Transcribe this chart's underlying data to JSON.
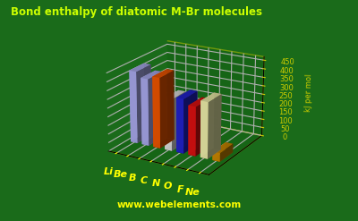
{
  "title": "Bond enthalpy of diatomic M-Br molecules",
  "ylabel": "kJ per mol",
  "elements": [
    "Li",
    "Be",
    "B",
    "C",
    "N",
    "O",
    "F",
    "Ne"
  ],
  "values": [
    420,
    390,
    410,
    300,
    315,
    285,
    325,
    50
  ],
  "bar_colors": [
    "#aaaaee",
    "#aaaaee",
    "#ee5500",
    "#dddddd",
    "#2222cc",
    "#dd1111",
    "#eeeeaa",
    "#cc8800"
  ],
  "background_color": "#1a6b1a",
  "floor_color": "#880000",
  "grid_color": "#cccc00",
  "title_color": "#ccff00",
  "label_color": "#ffff00",
  "axis_color": "#cccc00",
  "yticks": [
    0,
    50,
    100,
    150,
    200,
    250,
    300,
    350,
    400,
    450
  ],
  "ylim": [
    0,
    470
  ],
  "website": "www.webelements.com"
}
